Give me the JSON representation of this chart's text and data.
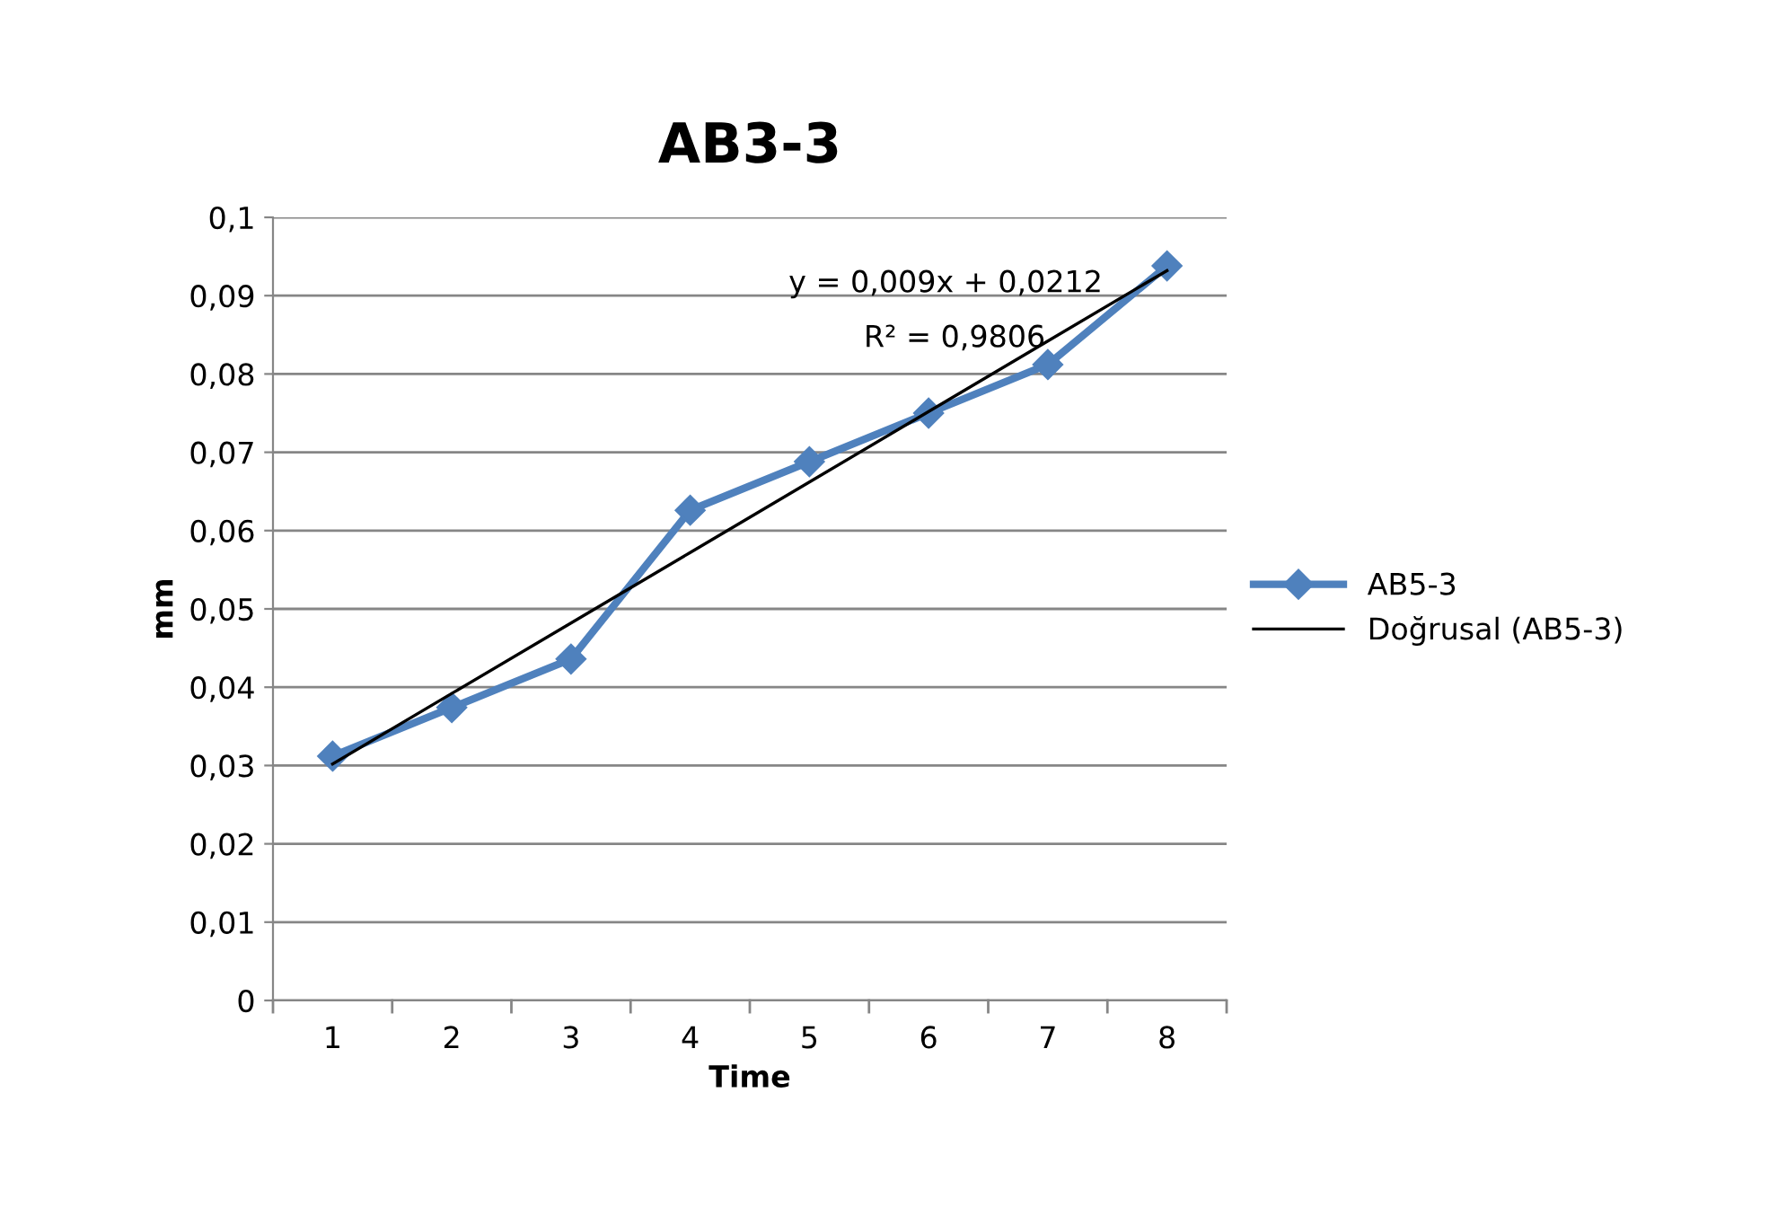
{
  "chart_data": {
    "type": "line",
    "title": "AB3-3",
    "xlabel": "Time",
    "ylabel": "mm",
    "categories": [
      "1",
      "2",
      "3",
      "4",
      "5",
      "6",
      "7",
      "8"
    ],
    "series": [
      {
        "name": "AB5-3",
        "color": "#4f81bd",
        "marker": "diamond",
        "line_style": "solid",
        "values": [
          0.0312,
          0.0374,
          0.0436,
          0.0626,
          0.0688,
          0.075,
          0.0812,
          0.0938
        ]
      },
      {
        "name": "Doğrusal (AB5-3)",
        "color": "#000000",
        "marker": "none",
        "line_style": "solid",
        "values": [
          0.0302,
          0.0392,
          0.0482,
          0.0572,
          0.0662,
          0.0752,
          0.0842,
          0.0932
        ]
      }
    ],
    "ylim": [
      0,
      0.1
    ],
    "yticks": [
      0,
      {
        "value": 0.01,
        "label": "0,01"
      },
      {
        "value": 0.02,
        "label": "0,02"
      },
      {
        "value": 0.03,
        "label": "0,03"
      },
      {
        "value": 0.04,
        "label": "0,04"
      },
      {
        "value": 0.05,
        "label": "0,05"
      },
      {
        "value": 0.06,
        "label": "0,06"
      },
      {
        "value": 0.07,
        "label": "0,07"
      },
      {
        "value": 0.08,
        "label": "0,08"
      },
      {
        "value": 0.09,
        "label": "0,09"
      },
      {
        "value": 0.1,
        "label": "0,1"
      }
    ],
    "grid": "y",
    "legend": "right",
    "annotations": [
      "y = 0,009x + 0,0212",
      "R² = 0,9806"
    ]
  }
}
